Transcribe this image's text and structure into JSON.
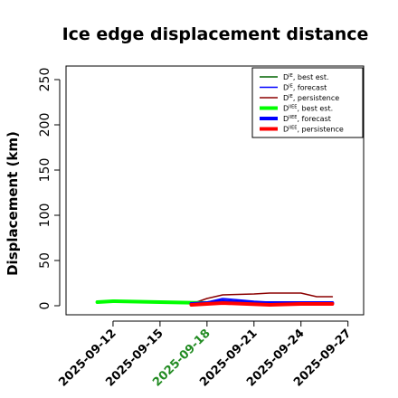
{
  "chart_data": {
    "type": "line",
    "title": "Ice edge displacement distance",
    "ylabel": "Displacement (km)",
    "xlabel": "",
    "x_ticks": [
      "2025-09-12",
      "2025-09-15",
      "2025-09-18",
      "2025-09-21",
      "2025-09-24",
      "2025-09-27"
    ],
    "x_tick_colors": [
      "#000000",
      "#000000",
      "#228B22",
      "#000000",
      "#000000",
      "#000000"
    ],
    "xlim": [
      "2025-09-09",
      "2025-09-28"
    ],
    "ylim": [
      0,
      260
    ],
    "y_ticks": [
      0,
      50,
      100,
      150,
      200,
      250
    ],
    "grid": false,
    "legend_position": "top-right",
    "series": [
      {
        "name": "D^IE, best est.",
        "legend_base": "D",
        "legend_sup": "IE",
        "legend_rest": ", best est.",
        "color": "#006400",
        "width": 1.5,
        "points": []
      },
      {
        "name": "D^IE, forecast",
        "legend_base": "D",
        "legend_sup": "IE",
        "legend_rest": ", forecast",
        "color": "#0000ff",
        "width": 1.5,
        "points": [
          [
            "2025-09-17",
            2
          ],
          [
            "2025-09-18",
            4
          ],
          [
            "2025-09-19",
            8
          ],
          [
            "2025-09-21",
            5
          ],
          [
            "2025-09-22",
            4
          ],
          [
            "2025-09-24",
            4
          ],
          [
            "2025-09-26",
            4
          ]
        ]
      },
      {
        "name": "D^IE, persistence",
        "legend_base": "D",
        "legend_sup": "IE",
        "legend_rest": ", persistence",
        "color": "#8b0000",
        "width": 1.5,
        "points": [
          [
            "2025-09-17",
            2
          ],
          [
            "2025-09-18",
            8
          ],
          [
            "2025-09-19",
            12
          ],
          [
            "2025-09-21",
            13
          ],
          [
            "2025-09-22",
            14
          ],
          [
            "2025-09-24",
            14
          ],
          [
            "2025-09-25",
            10
          ],
          [
            "2025-09-26",
            10
          ]
        ]
      },
      {
        "name": "D^IIEE, best est.",
        "legend_base": "D",
        "legend_sup": "IIEE",
        "legend_rest": ", best est.",
        "color": "#00ff00",
        "width": 4,
        "points": [
          [
            "2025-09-11",
            4
          ],
          [
            "2025-09-12",
            5
          ],
          [
            "2025-09-15",
            4
          ],
          [
            "2025-09-18",
            3
          ]
        ]
      },
      {
        "name": "D^IIEE, forecast",
        "legend_base": "D",
        "legend_sup": "IIEE",
        "legend_rest": ", forecast",
        "color": "#0000ff",
        "width": 4,
        "points": [
          [
            "2025-09-17",
            2
          ],
          [
            "2025-09-18",
            3
          ],
          [
            "2025-09-19",
            5
          ],
          [
            "2025-09-21",
            3
          ],
          [
            "2025-09-22",
            3
          ],
          [
            "2025-09-24",
            3
          ],
          [
            "2025-09-26",
            3
          ]
        ]
      },
      {
        "name": "D^IIEE, persistence",
        "legend_base": "D",
        "legend_sup": "IIEE",
        "legend_rest": ", persistence",
        "color": "#ff0000",
        "width": 4,
        "points": [
          [
            "2025-09-17",
            1
          ],
          [
            "2025-09-18",
            2
          ],
          [
            "2025-09-19",
            3
          ],
          [
            "2025-09-22",
            1
          ],
          [
            "2025-09-24",
            2
          ],
          [
            "2025-09-26",
            2
          ]
        ]
      }
    ]
  }
}
